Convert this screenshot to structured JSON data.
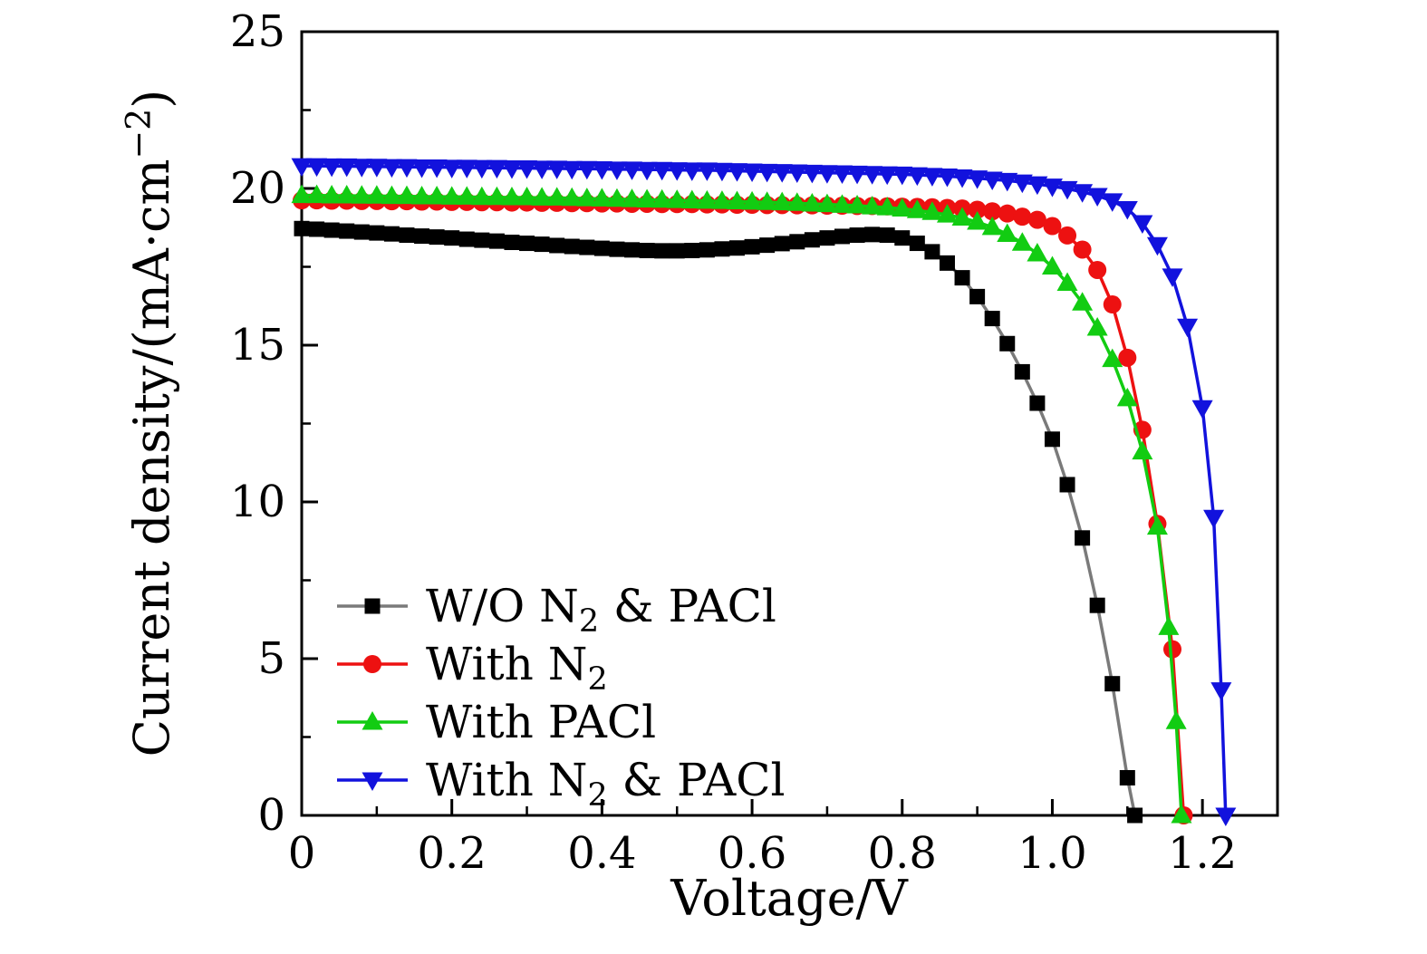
{
  "chart_data": {
    "type": "line",
    "title": "",
    "xlabel": "Voltage/V",
    "ylabel_parts": [
      {
        "text": "Current density/(mA·cm"
      },
      {
        "text": "−2",
        "sup": true
      },
      {
        "text": ")"
      }
    ],
    "xlim": [
      0,
      1.3
    ],
    "ylim": [
      0,
      25
    ],
    "grid": false,
    "legend_position": "lower-left",
    "x_ticks": [
      {
        "v": 0.0,
        "label": "0"
      },
      {
        "v": 0.2,
        "label": "0.2"
      },
      {
        "v": 0.4,
        "label": "0.4"
      },
      {
        "v": 0.6,
        "label": "0.6"
      },
      {
        "v": 0.8,
        "label": "0.8"
      },
      {
        "v": 1.0,
        "label": "1.0"
      },
      {
        "v": 1.2,
        "label": "1.2"
      }
    ],
    "x_minor_ticks": [
      0.1,
      0.3,
      0.5,
      0.7,
      0.9,
      1.1,
      1.3
    ],
    "y_ticks": [
      {
        "v": 0,
        "label": "0"
      },
      {
        "v": 5,
        "label": "5"
      },
      {
        "v": 10,
        "label": "10"
      },
      {
        "v": 15,
        "label": "15"
      },
      {
        "v": 20,
        "label": "20"
      },
      {
        "v": 25,
        "label": "25"
      }
    ],
    "y_minor_ticks": [
      2.5,
      7.5,
      12.5,
      17.5,
      22.5
    ],
    "series": [
      {
        "name": "wo-n2-pacl",
        "label_parts": [
          {
            "text": "W/O N"
          },
          {
            "text": "2",
            "sub": true
          },
          {
            "text": " & PACl"
          }
        ],
        "marker": "square",
        "marker_color": "#000000",
        "line_color": "#7a7a7a",
        "points": [
          [
            0.0,
            18.72
          ],
          [
            0.02,
            18.7
          ],
          [
            0.04,
            18.67
          ],
          [
            0.06,
            18.64
          ],
          [
            0.08,
            18.61
          ],
          [
            0.1,
            18.58
          ],
          [
            0.12,
            18.55
          ],
          [
            0.14,
            18.51
          ],
          [
            0.16,
            18.48
          ],
          [
            0.18,
            18.45
          ],
          [
            0.2,
            18.42
          ],
          [
            0.22,
            18.38
          ],
          [
            0.24,
            18.35
          ],
          [
            0.26,
            18.32
          ],
          [
            0.28,
            18.28
          ],
          [
            0.3,
            18.25
          ],
          [
            0.32,
            18.22
          ],
          [
            0.34,
            18.18
          ],
          [
            0.36,
            18.15
          ],
          [
            0.38,
            18.12
          ],
          [
            0.4,
            18.09
          ],
          [
            0.42,
            18.06
          ],
          [
            0.44,
            18.04
          ],
          [
            0.46,
            18.02
          ],
          [
            0.48,
            18.01
          ],
          [
            0.5,
            18.01
          ],
          [
            0.52,
            18.02
          ],
          [
            0.54,
            18.04
          ],
          [
            0.56,
            18.07
          ],
          [
            0.58,
            18.1
          ],
          [
            0.6,
            18.14
          ],
          [
            0.62,
            18.19
          ],
          [
            0.64,
            18.24
          ],
          [
            0.66,
            18.3
          ],
          [
            0.68,
            18.36
          ],
          [
            0.7,
            18.42
          ],
          [
            0.72,
            18.47
          ],
          [
            0.74,
            18.51
          ],
          [
            0.76,
            18.53
          ],
          [
            0.78,
            18.51
          ],
          [
            0.8,
            18.42
          ],
          [
            0.82,
            18.25
          ],
          [
            0.84,
            17.98
          ],
          [
            0.86,
            17.62
          ],
          [
            0.88,
            17.15
          ],
          [
            0.9,
            16.55
          ],
          [
            0.92,
            15.85
          ],
          [
            0.94,
            15.05
          ],
          [
            0.96,
            14.15
          ],
          [
            0.98,
            13.15
          ],
          [
            1.0,
            12.0
          ],
          [
            1.02,
            10.55
          ],
          [
            1.04,
            8.85
          ],
          [
            1.06,
            6.7
          ],
          [
            1.08,
            4.2
          ],
          [
            1.1,
            1.2
          ],
          [
            1.11,
            0.0
          ]
        ]
      },
      {
        "name": "with-n2",
        "label_parts": [
          {
            "text": "With N"
          },
          {
            "text": "2",
            "sub": true
          }
        ],
        "marker": "circle",
        "marker_color": "#ed1111",
        "line_color": "#ed1111",
        "points": [
          [
            0.0,
            19.62
          ],
          [
            0.02,
            19.62
          ],
          [
            0.04,
            19.61
          ],
          [
            0.06,
            19.61
          ],
          [
            0.08,
            19.6
          ],
          [
            0.1,
            19.6
          ],
          [
            0.12,
            19.59
          ],
          [
            0.14,
            19.59
          ],
          [
            0.16,
            19.58
          ],
          [
            0.18,
            19.58
          ],
          [
            0.2,
            19.57
          ],
          [
            0.22,
            19.57
          ],
          [
            0.24,
            19.56
          ],
          [
            0.26,
            19.56
          ],
          [
            0.28,
            19.55
          ],
          [
            0.3,
            19.55
          ],
          [
            0.32,
            19.54
          ],
          [
            0.34,
            19.54
          ],
          [
            0.36,
            19.53
          ],
          [
            0.38,
            19.53
          ],
          [
            0.4,
            19.52
          ],
          [
            0.42,
            19.52
          ],
          [
            0.44,
            19.51
          ],
          [
            0.46,
            19.51
          ],
          [
            0.48,
            19.5
          ],
          [
            0.5,
            19.5
          ],
          [
            0.52,
            19.5
          ],
          [
            0.54,
            19.49
          ],
          [
            0.56,
            19.49
          ],
          [
            0.58,
            19.48
          ],
          [
            0.6,
            19.48
          ],
          [
            0.62,
            19.47
          ],
          [
            0.64,
            19.47
          ],
          [
            0.66,
            19.46
          ],
          [
            0.68,
            19.46
          ],
          [
            0.7,
            19.45
          ],
          [
            0.72,
            19.45
          ],
          [
            0.74,
            19.44
          ],
          [
            0.76,
            19.44
          ],
          [
            0.78,
            19.43
          ],
          [
            0.8,
            19.42
          ],
          [
            0.82,
            19.41
          ],
          [
            0.84,
            19.4
          ],
          [
            0.86,
            19.38
          ],
          [
            0.88,
            19.36
          ],
          [
            0.9,
            19.32
          ],
          [
            0.92,
            19.27
          ],
          [
            0.94,
            19.2
          ],
          [
            0.96,
            19.1
          ],
          [
            0.98,
            19.0
          ],
          [
            1.0,
            18.8
          ],
          [
            1.02,
            18.5
          ],
          [
            1.04,
            18.05
          ],
          [
            1.06,
            17.4
          ],
          [
            1.08,
            16.3
          ],
          [
            1.1,
            14.6
          ],
          [
            1.12,
            12.3
          ],
          [
            1.14,
            9.3
          ],
          [
            1.16,
            5.3
          ],
          [
            1.175,
            0.0
          ]
        ]
      },
      {
        "name": "with-pacl",
        "label_parts": [
          {
            "text": "With PACl"
          }
        ],
        "marker": "triangle-up",
        "marker_color": "#12cc12",
        "line_color": "#12cc12",
        "points": [
          [
            0.0,
            19.78
          ],
          [
            0.02,
            19.78
          ],
          [
            0.04,
            19.77
          ],
          [
            0.06,
            19.77
          ],
          [
            0.08,
            19.76
          ],
          [
            0.1,
            19.76
          ],
          [
            0.12,
            19.75
          ],
          [
            0.14,
            19.75
          ],
          [
            0.16,
            19.74
          ],
          [
            0.18,
            19.74
          ],
          [
            0.2,
            19.73
          ],
          [
            0.22,
            19.73
          ],
          [
            0.24,
            19.72
          ],
          [
            0.26,
            19.72
          ],
          [
            0.28,
            19.71
          ],
          [
            0.3,
            19.71
          ],
          [
            0.32,
            19.7
          ],
          [
            0.34,
            19.7
          ],
          [
            0.36,
            19.69
          ],
          [
            0.38,
            19.68
          ],
          [
            0.4,
            19.67
          ],
          [
            0.42,
            19.66
          ],
          [
            0.44,
            19.65
          ],
          [
            0.46,
            19.64
          ],
          [
            0.48,
            19.63
          ],
          [
            0.5,
            19.62
          ],
          [
            0.52,
            19.61
          ],
          [
            0.54,
            19.6
          ],
          [
            0.56,
            19.59
          ],
          [
            0.58,
            19.58
          ],
          [
            0.6,
            19.57
          ],
          [
            0.62,
            19.56
          ],
          [
            0.64,
            19.55
          ],
          [
            0.66,
            19.53
          ],
          [
            0.68,
            19.51
          ],
          [
            0.7,
            19.49
          ],
          [
            0.72,
            19.47
          ],
          [
            0.74,
            19.45
          ],
          [
            0.76,
            19.42
          ],
          [
            0.78,
            19.39
          ],
          [
            0.8,
            19.35
          ],
          [
            0.82,
            19.3
          ],
          [
            0.84,
            19.24
          ],
          [
            0.86,
            19.16
          ],
          [
            0.88,
            19.06
          ],
          [
            0.9,
            18.93
          ],
          [
            0.92,
            18.76
          ],
          [
            0.94,
            18.54
          ],
          [
            0.96,
            18.26
          ],
          [
            0.98,
            17.92
          ],
          [
            1.0,
            17.5
          ],
          [
            1.02,
            16.98
          ],
          [
            1.04,
            16.35
          ],
          [
            1.06,
            15.55
          ],
          [
            1.08,
            14.55
          ],
          [
            1.1,
            13.3
          ],
          [
            1.12,
            11.6
          ],
          [
            1.14,
            9.2
          ],
          [
            1.155,
            6.0
          ],
          [
            1.165,
            3.0
          ],
          [
            1.172,
            0.0
          ]
        ]
      },
      {
        "name": "with-n2-pacl",
        "label_parts": [
          {
            "text": "With N"
          },
          {
            "text": "2",
            "sub": true
          },
          {
            "text": " & PACl"
          }
        ],
        "marker": "triangle-down",
        "marker_color": "#1212dd",
        "line_color": "#1212dd",
        "points": [
          [
            0.0,
            20.72
          ],
          [
            0.02,
            20.72
          ],
          [
            0.04,
            20.71
          ],
          [
            0.06,
            20.71
          ],
          [
            0.08,
            20.7
          ],
          [
            0.1,
            20.7
          ],
          [
            0.12,
            20.69
          ],
          [
            0.14,
            20.69
          ],
          [
            0.16,
            20.68
          ],
          [
            0.18,
            20.68
          ],
          [
            0.2,
            20.67
          ],
          [
            0.22,
            20.67
          ],
          [
            0.24,
            20.66
          ],
          [
            0.26,
            20.66
          ],
          [
            0.28,
            20.65
          ],
          [
            0.3,
            20.65
          ],
          [
            0.32,
            20.64
          ],
          [
            0.34,
            20.64
          ],
          [
            0.36,
            20.63
          ],
          [
            0.38,
            20.63
          ],
          [
            0.4,
            20.62
          ],
          [
            0.42,
            20.61
          ],
          [
            0.44,
            20.61
          ],
          [
            0.46,
            20.6
          ],
          [
            0.48,
            20.6
          ],
          [
            0.5,
            20.59
          ],
          [
            0.52,
            20.58
          ],
          [
            0.54,
            20.58
          ],
          [
            0.56,
            20.57
          ],
          [
            0.58,
            20.56
          ],
          [
            0.6,
            20.55
          ],
          [
            0.62,
            20.54
          ],
          [
            0.64,
            20.53
          ],
          [
            0.66,
            20.52
          ],
          [
            0.68,
            20.51
          ],
          [
            0.7,
            20.5
          ],
          [
            0.72,
            20.49
          ],
          [
            0.74,
            20.48
          ],
          [
            0.76,
            20.47
          ],
          [
            0.78,
            20.46
          ],
          [
            0.8,
            20.45
          ],
          [
            0.82,
            20.43
          ],
          [
            0.84,
            20.41
          ],
          [
            0.86,
            20.39
          ],
          [
            0.88,
            20.36
          ],
          [
            0.9,
            20.33
          ],
          [
            0.92,
            20.29
          ],
          [
            0.94,
            20.25
          ],
          [
            0.96,
            20.2
          ],
          [
            0.98,
            20.14
          ],
          [
            1.0,
            20.07
          ],
          [
            1.02,
            19.99
          ],
          [
            1.04,
            19.89
          ],
          [
            1.06,
            19.77
          ],
          [
            1.08,
            19.6
          ],
          [
            1.1,
            19.35
          ],
          [
            1.12,
            18.9
          ],
          [
            1.14,
            18.2
          ],
          [
            1.16,
            17.2
          ],
          [
            1.18,
            15.6
          ],
          [
            1.2,
            13.0
          ],
          [
            1.215,
            9.5
          ],
          [
            1.225,
            4.0
          ],
          [
            1.231,
            0.0
          ]
        ]
      }
    ]
  },
  "style": {
    "axis_color": "#000000",
    "background": "#ffffff"
  }
}
